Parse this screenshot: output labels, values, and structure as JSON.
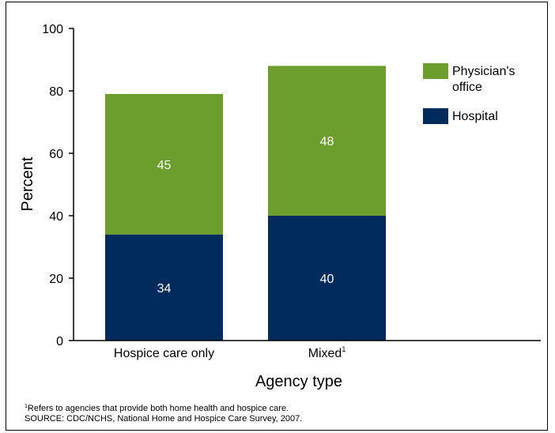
{
  "chart_data": {
    "type": "bar",
    "stacked": true,
    "categories": [
      "Hospice care only",
      "Mixed"
    ],
    "category_superscripts": [
      "",
      "1"
    ],
    "series": [
      {
        "name": "Hospital",
        "values": [
          34,
          40
        ],
        "color": "#002b5c"
      },
      {
        "name": "Physician's office",
        "values": [
          45,
          48
        ],
        "color": "#6c9e2e"
      }
    ],
    "xlabel": "Agency type",
    "ylabel": "Percent",
    "ylim": [
      0,
      100
    ],
    "yticks": [
      0,
      20,
      40,
      60,
      80,
      100
    ],
    "grid": false,
    "legend_placement": "top-right",
    "legend": [
      {
        "lines": [
          "Physician's",
          "office"
        ],
        "color": "#6c9e2e"
      },
      {
        "lines": [
          "Hospital"
        ],
        "color": "#002b5c"
      }
    ]
  },
  "footnotes": {
    "note_marker": "1",
    "note_text": "Refers to agencies that provide both home health and hospice care.",
    "source": "SOURCE: CDC/NCHS, National Home and Hospice Care Survey, 2007."
  }
}
